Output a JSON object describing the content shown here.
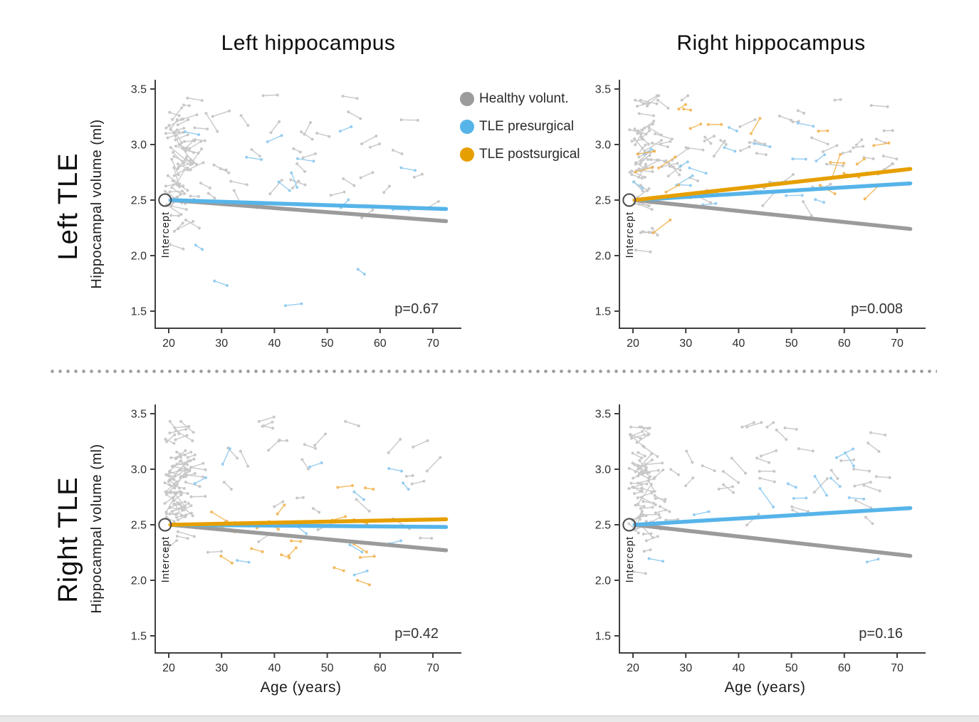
{
  "figure": {
    "column_titles": {
      "left": "Left hippocampus",
      "right": "Right hippocampus"
    },
    "row_labels": {
      "top": "Left TLE",
      "bottom": "Right TLE"
    }
  },
  "legend": {
    "items": [
      {
        "label": "Healthy volunt.",
        "color": "#9c9c9c"
      },
      {
        "label": "TLE presurgical",
        "color": "#56b4e9"
      },
      {
        "label": "TLE postsurgical",
        "color": "#e69f00"
      }
    ]
  },
  "chart_data": {
    "type": "scatter",
    "xlabel": "Age (years)",
    "ylabel": "Hippocampal volume (ml)",
    "x_ticks": [
      20,
      30,
      40,
      50,
      60,
      70
    ],
    "y_ticks": [
      1.5,
      2.0,
      2.5,
      3.0,
      3.5
    ],
    "xlim": [
      17,
      75
    ],
    "ylim": [
      1.35,
      3.6
    ],
    "grid": false,
    "legend_position": "top-center",
    "intercept": {
      "label": "Intercept",
      "age": 19.3,
      "volume": 2.5
    },
    "series": {
      "healthy": {
        "label": "Healthy volunt.",
        "line_color": "#9b9b9b",
        "point_color": "#c4c4c4"
      },
      "presurgical": {
        "label": "TLE presurgical",
        "line_color": "#56b4e9",
        "point_color": "#8ec9ef"
      },
      "postsurgical": {
        "label": "TLE postsurgical",
        "line_color": "#e69f00",
        "point_color": "#f2b451"
      }
    },
    "panels": [
      {
        "id": "left-tle-left-hippocampus",
        "row": "Left TLE",
        "col": "Left hippocampus",
        "p_label": "p=0.67",
        "trends": [
          {
            "series": "healthy",
            "age": [
              20.3,
              72.5
            ],
            "volume": [
              2.5,
              2.31
            ]
          },
          {
            "series": "presurgical",
            "age": [
              20.3,
              72.5
            ],
            "volume": [
              2.5,
              2.42
            ]
          }
        ],
        "scatter": [
          {
            "series": "healthy",
            "n": 92,
            "seed": 101,
            "age_cluster_frac": 0.55,
            "age_cluster_base": 19.2,
            "age_cluster_spread": 2.6,
            "age_min": 24,
            "age_max": 69,
            "vol_mean": 2.93,
            "vol_sd": 0.3,
            "vol_min": 2.1,
            "vol_max": 3.44
          },
          {
            "series": "presurgical",
            "n": 15,
            "seed": 102,
            "age_cluster_frac": 0,
            "age_cluster_base": 20,
            "age_cluster_spread": 2,
            "age_min": 21,
            "age_max": 64,
            "vol_mean": 2.5,
            "vol_sd": 0.5,
            "vol_min": 1.5,
            "vol_max": 3.12
          }
        ]
      },
      {
        "id": "left-tle-right-hippocampus",
        "row": "Left TLE",
        "col": "Right hippocampus",
        "p_label": "p=0.008",
        "trends": [
          {
            "series": "healthy",
            "age": [
              20.3,
              72.5
            ],
            "volume": [
              2.5,
              2.24
            ]
          },
          {
            "series": "presurgical",
            "age": [
              20.3,
              72.5
            ],
            "volume": [
              2.5,
              2.65
            ]
          },
          {
            "series": "postsurgical",
            "age": [
              20.3,
              72.5
            ],
            "volume": [
              2.5,
              2.78
            ]
          }
        ],
        "scatter": [
          {
            "series": "healthy",
            "n": 92,
            "seed": 201,
            "age_cluster_frac": 0.55,
            "age_cluster_base": 19.2,
            "age_cluster_spread": 2.6,
            "age_min": 24,
            "age_max": 69,
            "vol_mean": 2.9,
            "vol_sd": 0.3,
            "vol_min": 2.05,
            "vol_max": 3.4
          },
          {
            "series": "presurgical",
            "n": 16,
            "seed": 202,
            "age_cluster_frac": 0.2,
            "age_cluster_base": 20,
            "age_cluster_spread": 2.5,
            "age_min": 24,
            "age_max": 66,
            "vol_mean": 2.85,
            "vol_sd": 0.24,
            "vol_min": 1.95,
            "vol_max": 3.36
          },
          {
            "series": "postsurgical",
            "n": 19,
            "seed": 203,
            "age_cluster_frac": 0.2,
            "age_cluster_base": 20,
            "age_cluster_spread": 2.5,
            "age_min": 23,
            "age_max": 66,
            "vol_mean": 2.75,
            "vol_sd": 0.32,
            "vol_min": 1.98,
            "vol_max": 3.32
          }
        ]
      },
      {
        "id": "right-tle-left-hippocampus",
        "row": "Right TLE",
        "col": "Left hippocampus",
        "p_label": "p=0.42",
        "trends": [
          {
            "series": "healthy",
            "age": [
              20.3,
              72.5
            ],
            "volume": [
              2.5,
              2.27
            ]
          },
          {
            "series": "presurgical",
            "age": [
              20.3,
              72.5
            ],
            "volume": [
              2.5,
              2.48
            ]
          },
          {
            "series": "postsurgical",
            "age": [
              20.3,
              72.5
            ],
            "volume": [
              2.5,
              2.55
            ]
          }
        ],
        "scatter": [
          {
            "series": "healthy",
            "n": 92,
            "seed": 301,
            "age_cluster_frac": 0.55,
            "age_cluster_base": 19.2,
            "age_cluster_spread": 2.6,
            "age_min": 24,
            "age_max": 69,
            "vol_mean": 2.92,
            "vol_sd": 0.3,
            "vol_min": 2.1,
            "vol_max": 3.43
          },
          {
            "series": "presurgical",
            "n": 11,
            "seed": 302,
            "age_cluster_frac": 0.1,
            "age_cluster_base": 21,
            "age_cluster_spread": 3,
            "age_min": 26,
            "age_max": 65,
            "vol_mean": 2.55,
            "vol_sd": 0.32,
            "vol_min": 1.9,
            "vol_max": 3.3
          },
          {
            "series": "postsurgical",
            "n": 18,
            "seed": 303,
            "age_cluster_frac": 0.15,
            "age_cluster_base": 22,
            "age_cluster_spread": 3,
            "age_min": 24,
            "age_max": 58,
            "vol_mean": 2.52,
            "vol_sd": 0.28,
            "vol_min": 2.0,
            "vol_max": 3.12
          }
        ]
      },
      {
        "id": "right-tle-right-hippocampus",
        "row": "Right TLE",
        "col": "Right hippocampus",
        "p_label": "p=0.16",
        "trends": [
          {
            "series": "healthy",
            "age": [
              20.3,
              72.5
            ],
            "volume": [
              2.5,
              2.22
            ]
          },
          {
            "series": "presurgical",
            "age": [
              20.3,
              72.5
            ],
            "volume": [
              2.5,
              2.65
            ]
          }
        ],
        "scatter": [
          {
            "series": "healthy",
            "n": 92,
            "seed": 401,
            "age_cluster_frac": 0.55,
            "age_cluster_base": 19.2,
            "age_cluster_spread": 2.6,
            "age_min": 24,
            "age_max": 69,
            "vol_mean": 2.9,
            "vol_sd": 0.3,
            "vol_min": 2.0,
            "vol_max": 3.38
          },
          {
            "series": "presurgical",
            "n": 11,
            "seed": 402,
            "age_cluster_frac": 0.1,
            "age_cluster_base": 22,
            "age_cluster_spread": 3,
            "age_min": 27,
            "age_max": 66,
            "vol_mean": 2.62,
            "vol_sd": 0.34,
            "vol_min": 1.9,
            "vol_max": 3.28
          }
        ]
      }
    ]
  }
}
